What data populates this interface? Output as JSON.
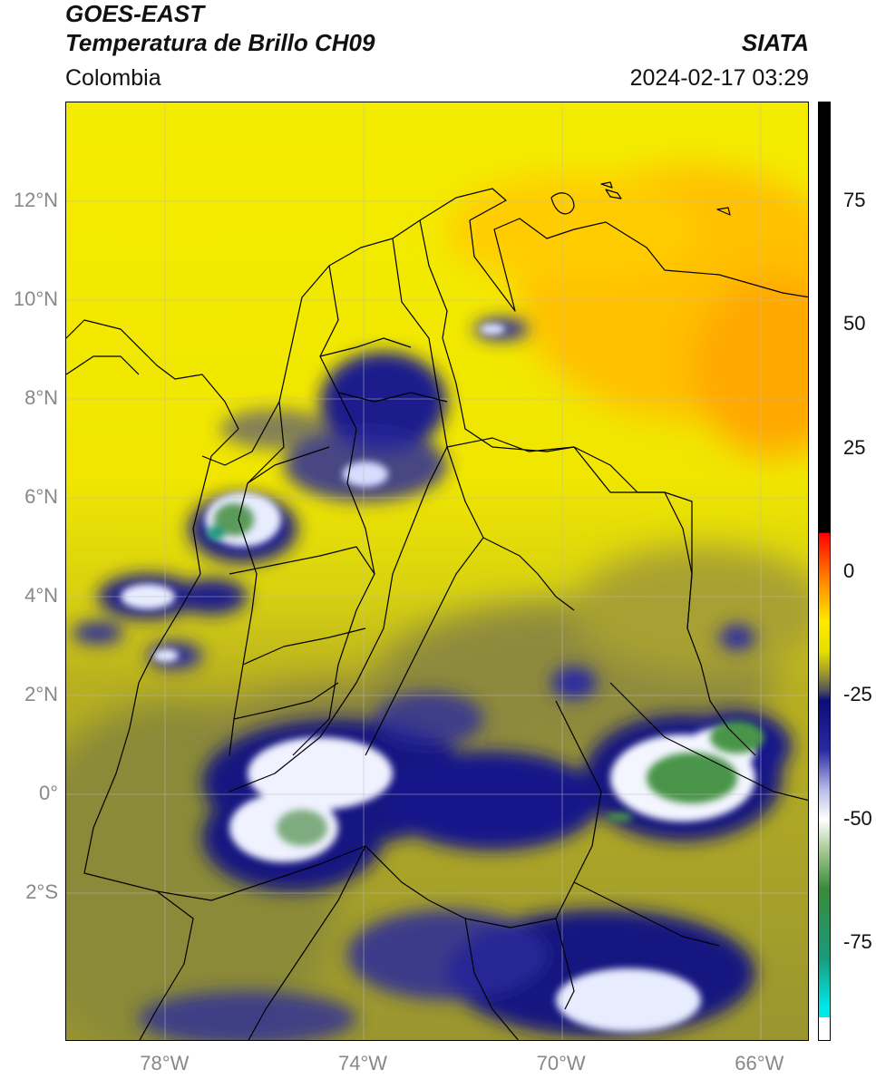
{
  "header": {
    "satellite": "GOES-EAST",
    "product": "Temperatura de Brillo CH09",
    "organization": "SIATA",
    "region": "Colombia",
    "timestamp": "2024-02-17 03:29"
  },
  "map": {
    "lon_range": [
      -80,
      -65
    ],
    "lat_range": [
      -5,
      14
    ],
    "lat_ticks": [
      {
        "value": 12,
        "label": "12°N"
      },
      {
        "value": 10,
        "label": "10°N"
      },
      {
        "value": 8,
        "label": "8°N"
      },
      {
        "value": 6,
        "label": "6°N"
      },
      {
        "value": 4,
        "label": "4°N"
      },
      {
        "value": 2,
        "label": "2°N"
      },
      {
        "value": 0,
        "label": "0°"
      },
      {
        "value": -2,
        "label": "2°S"
      }
    ],
    "lon_ticks": [
      {
        "value": -78,
        "label": "78°W"
      },
      {
        "value": -74,
        "label": "74°W"
      },
      {
        "value": -70,
        "label": "70°W"
      },
      {
        "value": -66,
        "label": "66°W"
      }
    ],
    "grid": true
  },
  "colorbar": {
    "range": [
      -95,
      95
    ],
    "ticks": [
      {
        "value": 75,
        "label": "75"
      },
      {
        "value": 50,
        "label": "50"
      },
      {
        "value": 25,
        "label": "25"
      },
      {
        "value": 0,
        "label": "0"
      },
      {
        "value": -25,
        "label": "-25"
      },
      {
        "value": -50,
        "label": "-50"
      },
      {
        "value": -75,
        "label": "-75"
      }
    ],
    "stops": [
      {
        "value": 95,
        "color": "#000000"
      },
      {
        "value": 8,
        "color": "#000000"
      },
      {
        "value": 7.9,
        "color": "#ff0000"
      },
      {
        "value": -2,
        "color": "#ff8c00"
      },
      {
        "value": -10,
        "color": "#ffea00"
      },
      {
        "value": -16,
        "color": "#e2e000"
      },
      {
        "value": -20,
        "color": "#a6a128"
      },
      {
        "value": -24,
        "color": "#505060"
      },
      {
        "value": -26,
        "color": "#0c0c7a"
      },
      {
        "value": -36,
        "color": "#2a2aa0"
      },
      {
        "value": -44,
        "color": "#b8bce8"
      },
      {
        "value": -50,
        "color": "#ffffff"
      },
      {
        "value": -56,
        "color": "#a8cc98"
      },
      {
        "value": -64,
        "color": "#3a8a3a"
      },
      {
        "value": -78,
        "color": "#1a9a7a"
      },
      {
        "value": -88,
        "color": "#00e8e8"
      },
      {
        "value": -90,
        "color": "#00e8e8"
      },
      {
        "value": -90.1,
        "color": "#ffffff"
      },
      {
        "value": -95,
        "color": "#ffffff"
      }
    ]
  }
}
